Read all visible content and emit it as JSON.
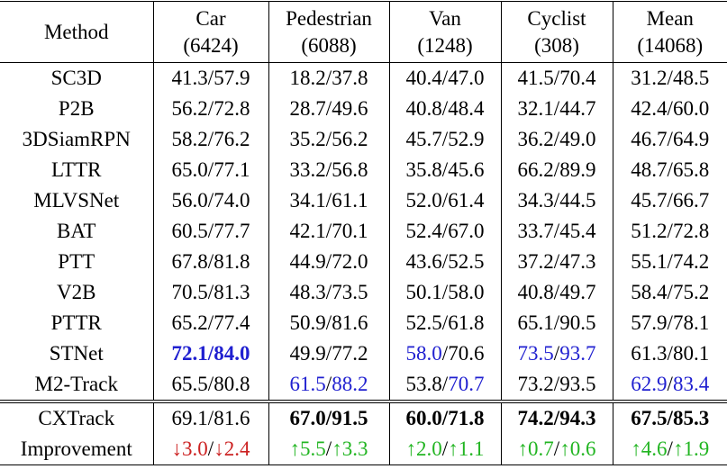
{
  "table": {
    "header": [
      [
        "Method"
      ],
      [
        "Car",
        "(6424)"
      ],
      [
        "Pedestrian",
        "(6088)"
      ],
      [
        "Van",
        "(1248)"
      ],
      [
        "Cyclist",
        "(308)"
      ],
      [
        "Mean",
        "(14068)"
      ]
    ],
    "rows": [
      [
        "SC3D",
        [
          "41.3",
          "/",
          "57.9"
        ],
        [
          "18.2",
          "/",
          "37.8"
        ],
        [
          "40.4",
          "/",
          "47.0"
        ],
        [
          "41.5",
          "/",
          "70.4"
        ],
        [
          "31.2",
          "/",
          "48.5"
        ]
      ],
      [
        "P2B",
        [
          "56.2",
          "/",
          "72.8"
        ],
        [
          "28.7",
          "/",
          "49.6"
        ],
        [
          "40.8",
          "/",
          "48.4"
        ],
        [
          "32.1",
          "/",
          "44.7"
        ],
        [
          "42.4",
          "/",
          "60.0"
        ]
      ],
      [
        "3DSiamRPN",
        [
          "58.2",
          "/",
          "76.2"
        ],
        [
          "35.2",
          "/",
          "56.2"
        ],
        [
          "45.7",
          "/",
          "52.9"
        ],
        [
          "36.2",
          "/",
          "49.0"
        ],
        [
          "46.7",
          "/",
          "64.9"
        ]
      ],
      [
        "LTTR",
        [
          "65.0",
          "/",
          "77.1"
        ],
        [
          "33.2",
          "/",
          "56.8"
        ],
        [
          "35.8",
          "/",
          "45.6"
        ],
        [
          "66.2",
          "/",
          "89.9"
        ],
        [
          "48.7",
          "/",
          "65.8"
        ]
      ],
      [
        "MLVSNet",
        [
          "56.0",
          "/",
          "74.0"
        ],
        [
          "34.1",
          "/",
          "61.1"
        ],
        [
          "52.0",
          "/",
          "61.4"
        ],
        [
          "34.3",
          "/",
          "44.5"
        ],
        [
          "45.7",
          "/",
          "66.7"
        ]
      ],
      [
        "BAT",
        [
          "60.5",
          "/",
          "77.7"
        ],
        [
          "42.1",
          "/",
          "70.1"
        ],
        [
          "52.4",
          "/",
          "67.0"
        ],
        [
          "33.7",
          "/",
          "45.4"
        ],
        [
          "51.2",
          "/",
          "72.8"
        ]
      ],
      [
        "PTT",
        [
          "67.8",
          "/",
          "81.8"
        ],
        [
          "44.9",
          "/",
          "72.0"
        ],
        [
          "43.6",
          "/",
          "52.5"
        ],
        [
          "37.2",
          "/",
          "47.3"
        ],
        [
          "55.1",
          "/",
          "74.2"
        ]
      ],
      [
        "V2B",
        [
          "70.5",
          "/",
          "81.3"
        ],
        [
          "48.3",
          "/",
          "73.5"
        ],
        [
          "50.1",
          "/",
          "58.0"
        ],
        [
          "40.8",
          "/",
          "49.7"
        ],
        [
          "58.4",
          "/",
          "75.2"
        ]
      ],
      [
        "PTTR",
        [
          "65.2",
          "/",
          "77.4"
        ],
        [
          "50.9",
          "/",
          "81.6"
        ],
        [
          "52.5",
          "/",
          "61.8"
        ],
        [
          "65.1",
          "/",
          "90.5"
        ],
        [
          "57.9",
          "/",
          "78.1"
        ]
      ],
      [
        "STNet",
        [
          {
            "text": "72.1",
            "color": "#2020d0",
            "bold": true
          },
          {
            "text": "/",
            "color": "#2020d0",
            "bold": true
          },
          {
            "text": "84.0",
            "color": "#2020d0",
            "bold": true
          }
        ],
        [
          "49.9",
          "/",
          "77.2"
        ],
        [
          {
            "text": "58.0",
            "color": "#2020d0"
          },
          "/",
          "70.6"
        ],
        [
          {
            "text": "73.5",
            "color": "#2020d0"
          },
          "/",
          {
            "text": "93.7",
            "color": "#2020d0"
          }
        ],
        [
          "61.3",
          "/",
          "80.1"
        ]
      ],
      [
        "M2-Track",
        [
          "65.5",
          "/",
          "80.8"
        ],
        [
          {
            "text": "61.5",
            "color": "#2020d0"
          },
          "/",
          {
            "text": "88.2",
            "color": "#2020d0"
          }
        ],
        [
          "53.8",
          "/",
          {
            "text": "70.7",
            "color": "#2020d0"
          }
        ],
        [
          "73.2",
          "/",
          "93.5"
        ],
        [
          {
            "text": "62.9",
            "color": "#2020d0"
          },
          "/",
          {
            "text": "83.4",
            "color": "#2020d0"
          }
        ]
      ],
      [
        "CXTrack",
        [
          "69.1",
          "/",
          "81.6"
        ],
        [
          {
            "text": "67.0",
            "bold": true
          },
          {
            "text": "/",
            "bold": true
          },
          {
            "text": "91.5",
            "bold": true
          }
        ],
        [
          {
            "text": "60.0",
            "bold": true
          },
          {
            "text": "/",
            "bold": true
          },
          {
            "text": "71.8",
            "bold": true
          }
        ],
        [
          {
            "text": "74.2",
            "bold": true
          },
          {
            "text": "/",
            "bold": true
          },
          {
            "text": "94.3",
            "bold": true
          }
        ],
        [
          {
            "text": "67.5",
            "bold": true
          },
          {
            "text": "/",
            "bold": true
          },
          {
            "text": "85.3",
            "bold": true
          }
        ]
      ],
      [
        "Improvement",
        [
          {
            "text": "↓3.0",
            "color": "#cc2222"
          },
          "/",
          {
            "text": "↓2.4",
            "color": "#cc2222"
          }
        ],
        [
          {
            "text": "↑5.5",
            "color": "#22b522"
          },
          "/",
          {
            "text": "↑3.3",
            "color": "#22b522"
          }
        ],
        [
          {
            "text": "↑2.0",
            "color": "#22b522"
          },
          "/",
          {
            "text": "↑1.1",
            "color": "#22b522"
          }
        ],
        [
          {
            "text": "↑0.7",
            "color": "#22b522"
          },
          "/",
          {
            "text": "↑0.6",
            "color": "#22b522"
          }
        ],
        [
          {
            "text": "↑4.6",
            "color": "#22b522"
          },
          "/",
          {
            "text": "↑1.9",
            "color": "#22b522"
          }
        ]
      ]
    ],
    "separator_before_row": 11
  }
}
